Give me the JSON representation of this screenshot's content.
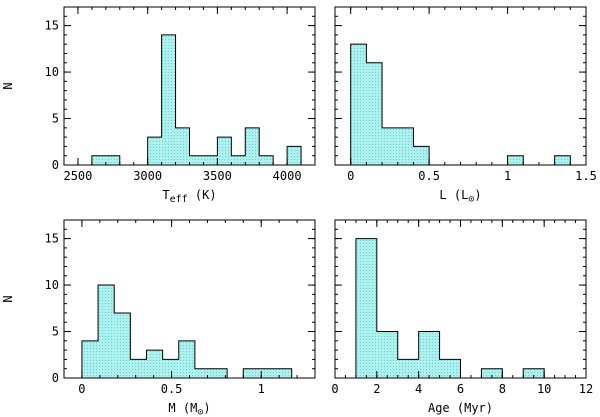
{
  "chart_data": [
    {
      "type": "bar",
      "ylabel": "N",
      "xlabel_main": "T",
      "xlabel_sub": "eff",
      "xlabel_unit": "(K)",
      "xlim": [
        2400,
        4200
      ],
      "ylim": [
        0,
        17
      ],
      "xticks": [
        2500,
        3000,
        3500,
        4000
      ],
      "xtick_labels": [
        "2500",
        "3000",
        "3500",
        "4000"
      ],
      "yticks": [
        0,
        5,
        10,
        15
      ],
      "ytick_labels": [
        "0",
        "5",
        "10",
        "15"
      ],
      "xminor": 100,
      "yminor": 1,
      "bin_edges": [
        2600,
        2700,
        2800,
        2900,
        3000,
        3100,
        3200,
        3300,
        3400,
        3500,
        3600,
        3700,
        3800,
        3900,
        4000,
        4100
      ],
      "values": [
        1,
        1,
        0,
        0,
        3,
        14,
        4,
        1,
        1,
        3,
        1,
        4,
        1,
        0,
        2
      ],
      "fill": "#b8f2f0"
    },
    {
      "type": "bar",
      "ylabel": "",
      "xlabel_main": "L (L",
      "xlabel_sun": true,
      "xlim": [
        -0.1,
        1.5
      ],
      "ylim": [
        0,
        17
      ],
      "xticks": [
        0,
        0.5,
        1,
        1.5
      ],
      "xtick_labels": [
        "0",
        "0.5",
        "1",
        "1.5"
      ],
      "yticks": [
        0,
        5,
        10,
        15
      ],
      "ytick_labels": [
        "",
        "",
        "",
        ""
      ],
      "xminor": 0.1,
      "yminor": 1,
      "bin_edges": [
        0,
        0.1,
        0.2,
        0.3,
        0.4,
        0.5,
        0.6,
        0.7,
        0.8,
        0.9,
        1.0,
        1.1,
        1.2,
        1.3,
        1.4
      ],
      "values": [
        13,
        11,
        4,
        4,
        2,
        0,
        0,
        0,
        0,
        0,
        1,
        0,
        0,
        1
      ],
      "fill": "#b8f2f0"
    },
    {
      "type": "bar",
      "ylabel": "N",
      "xlabel_main": "M (M",
      "xlabel_sun": true,
      "xlim": [
        -0.1,
        1.3
      ],
      "ylim": [
        0,
        17
      ],
      "xticks": [
        0,
        0.5,
        1
      ],
      "xtick_labels": [
        "0",
        "0.5",
        "1"
      ],
      "yticks": [
        0,
        5,
        10,
        15
      ],
      "ytick_labels": [
        "0",
        "5",
        "10",
        "15"
      ],
      "xminor": 0.1,
      "yminor": 1,
      "bin_edges": [
        0,
        0.09,
        0.18,
        0.27,
        0.36,
        0.45,
        0.54,
        0.63,
        0.72,
        0.81,
        0.9,
        0.99,
        1.08,
        1.17
      ],
      "values": [
        4,
        10,
        7,
        2,
        3,
        2,
        4,
        1,
        1,
        0,
        1,
        1,
        1
      ],
      "fill": "#b8f2f0"
    },
    {
      "type": "bar",
      "ylabel": "",
      "xlabel_main": "Age (Myr)",
      "xlim": [
        0,
        12
      ],
      "ylim": [
        0,
        17
      ],
      "xticks": [
        0,
        2,
        4,
        6,
        8,
        10,
        12
      ],
      "xtick_labels": [
        "0",
        "2",
        "4",
        "6",
        "8",
        "10",
        "12"
      ],
      "yticks": [
        0,
        5,
        10,
        15
      ],
      "ytick_labels": [
        "",
        "",
        "",
        ""
      ],
      "xminor": 0.5,
      "yminor": 1,
      "bin_edges": [
        1,
        2,
        3,
        4,
        5,
        6,
        7,
        8,
        9,
        10
      ],
      "values": [
        15,
        5,
        2,
        5,
        2,
        0,
        1,
        0,
        1
      ],
      "fill": "#b8f2f0"
    }
  ]
}
